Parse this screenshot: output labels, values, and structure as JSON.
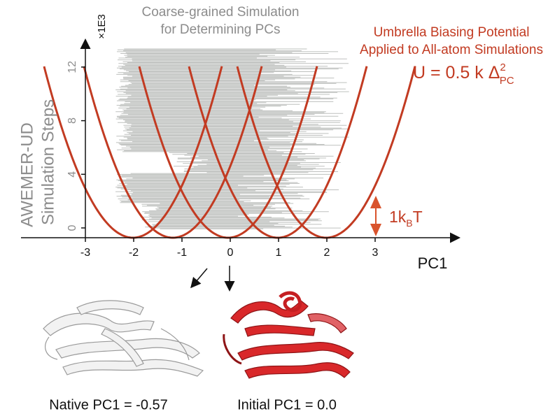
{
  "y_axis": {
    "multiplier": "×1E3",
    "label_line1": "AWEMER-UD",
    "label_line2": "Simulation Steps",
    "ticks": [
      "0",
      "4",
      "8",
      "12"
    ]
  },
  "x_axis": {
    "label": "PC1",
    "ticks": [
      "-3",
      "-2",
      "-1",
      "0",
      "1",
      "2",
      "3"
    ]
  },
  "coarse_label": {
    "line1": "Coarse-grained Simulation",
    "line2": "for Determining PCs"
  },
  "umbrella_label": {
    "line1": "Umbrella Biasing Potential",
    "line2": "Applied to All-atom Simulations"
  },
  "equation": {
    "main": "U = 0.5 k Δ",
    "superscript": "2",
    "subscript": "PC"
  },
  "energy_scale": {
    "main": "1k",
    "subscript": "B",
    "tail": "T"
  },
  "structures": {
    "native": "Native PC1 = -0.57",
    "initial": "Initial PC1 = 0.0"
  }
}
